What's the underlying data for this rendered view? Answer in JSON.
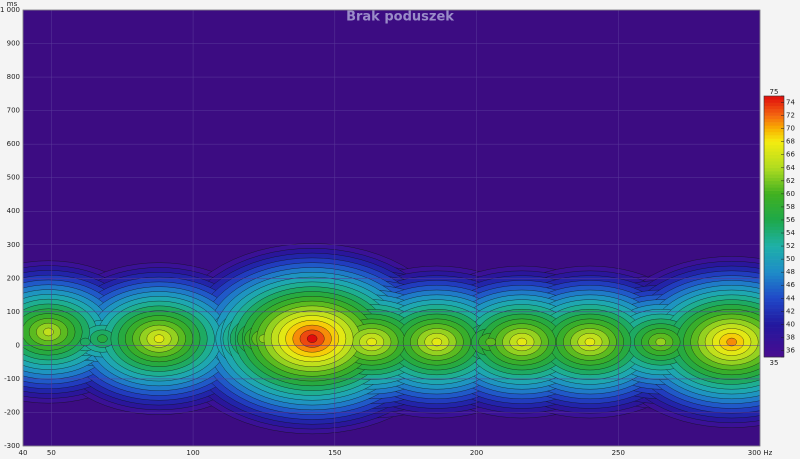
{
  "chart_data": {
    "type": "heatmap",
    "title": "Brak poduszek",
    "y_label": "ms",
    "x_unit": "Hz",
    "xlim": [
      40,
      300
    ],
    "xticks": [
      40,
      50,
      100,
      150,
      200,
      250,
      {
        "value": 300,
        "label": "300 Hz"
      }
    ],
    "ylim": [
      -300,
      1000
    ],
    "yticks": [
      -300,
      -200,
      -100,
      0,
      100,
      200,
      300,
      400,
      500,
      600,
      700,
      800,
      900,
      {
        "value": 1000,
        "label": "1 000"
      }
    ],
    "background": "#3c0c82",
    "x": [
      45,
      49,
      52,
      62,
      68,
      88,
      105,
      125,
      142,
      163,
      186,
      205,
      216,
      240,
      265,
      290
    ],
    "y": [
      20,
      40,
      60,
      10,
      20,
      20,
      10,
      20,
      20,
      10,
      10,
      10,
      10,
      10,
      10,
      10
    ],
    "values": [
      52,
      64,
      56,
      54,
      56,
      66,
      50,
      62,
      74,
      66,
      66,
      60,
      66,
      66,
      62,
      70
    ],
    "clim": [
      35,
      75
    ],
    "cticks": [
      35,
      36,
      38,
      40,
      42,
      44,
      46,
      48,
      50,
      52,
      54,
      56,
      58,
      60,
      62,
      64,
      66,
      68,
      70,
      72,
      74,
      75
    ],
    "colormap": [
      [
        35,
        "#4a0c90"
      ],
      [
        40,
        "#22189e"
      ],
      [
        44,
        "#2048c8"
      ],
      [
        48,
        "#1e8cc8"
      ],
      [
        52,
        "#1eb0a8"
      ],
      [
        56,
        "#1ea84a"
      ],
      [
        60,
        "#40b020"
      ],
      [
        64,
        "#b0dc20"
      ],
      [
        68,
        "#f4ec10"
      ],
      [
        70,
        "#f8b000"
      ],
      [
        72,
        "#f46810"
      ],
      [
        75,
        "#e00c0c"
      ]
    ]
  }
}
